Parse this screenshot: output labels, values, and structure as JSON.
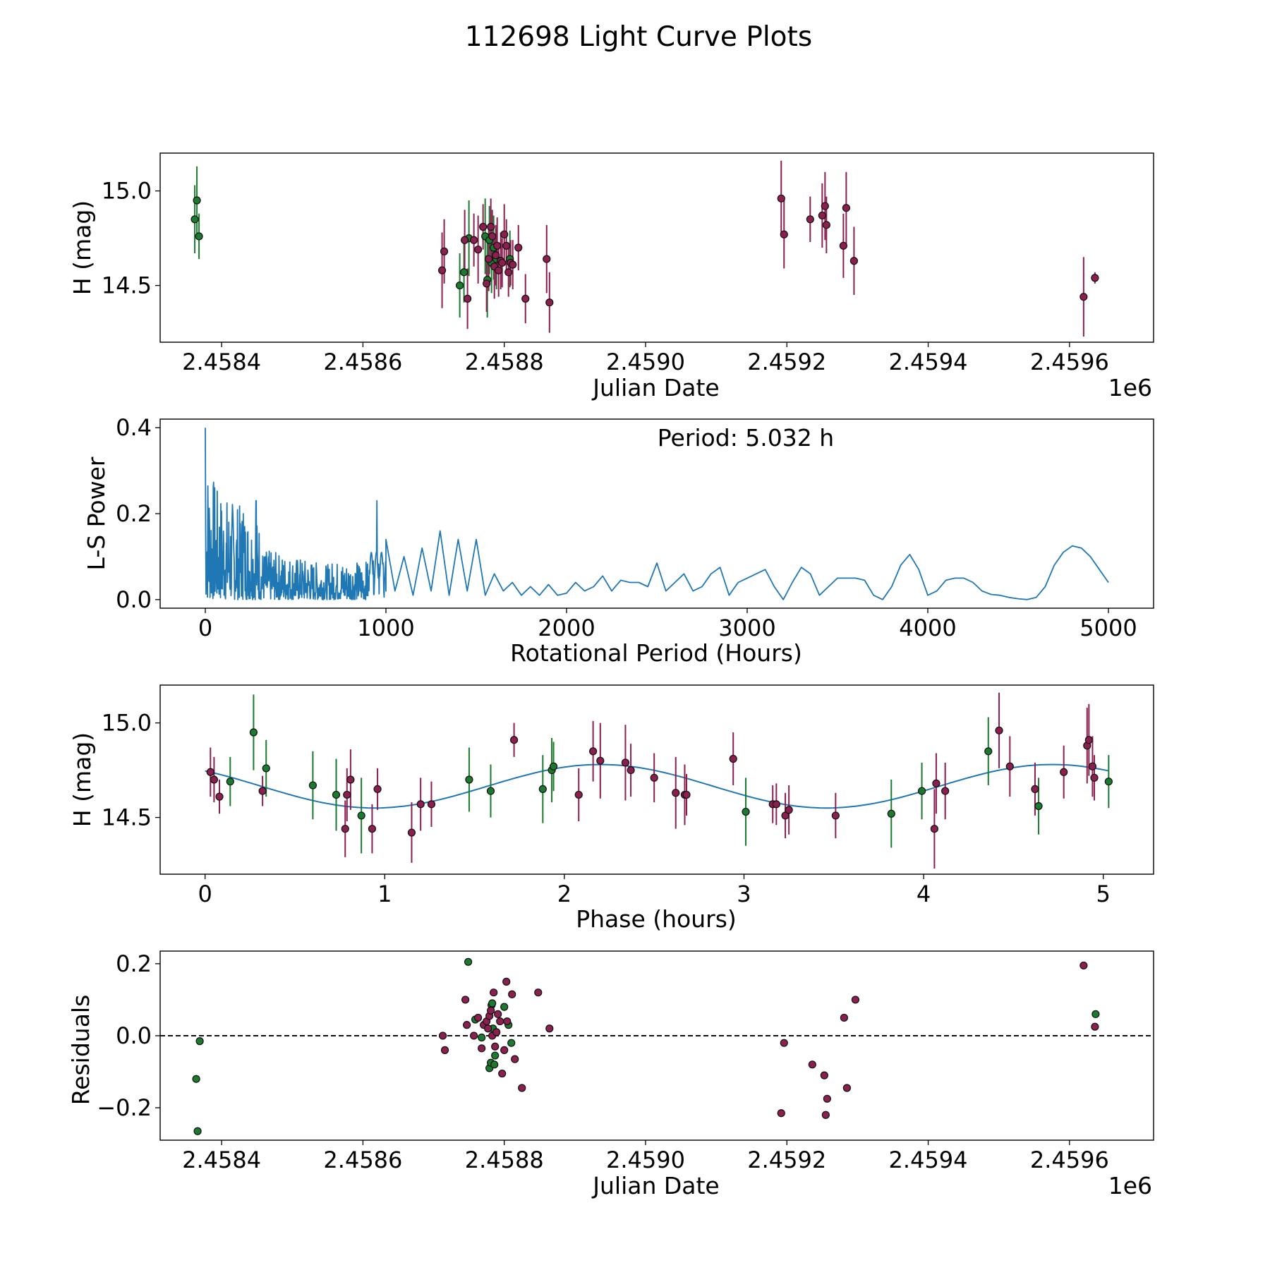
{
  "figure": {
    "title": "112698 Light Curve Plots"
  },
  "chart_data": [
    {
      "id": "lightcurve",
      "type": "scatter",
      "xlabel": "Julian Date",
      "ylabel": "H (mag)",
      "x_offset_label": "1e6",
      "x_tick_labels": [
        "2.4584",
        "2.4586",
        "2.4588",
        "2.4590",
        "2.4592",
        "2.4594",
        "2.4596"
      ],
      "y_tick_labels": [
        "15.0",
        "14.5"
      ],
      "xlim": [
        2458313,
        2459719
      ],
      "ylim": [
        14.2,
        15.2
      ],
      "grid": false,
      "series": [
        {
          "name": "green",
          "color": "#1a7a2e",
          "x": [
            2458362,
            2458365,
            2458368,
            2458737,
            2458743,
            2458750,
            2458773,
            2458776,
            2458779,
            2458782,
            2458785,
            2458789,
            2458808
          ],
          "y": [
            14.85,
            14.95,
            14.76,
            14.5,
            14.57,
            14.75,
            14.76,
            14.53,
            14.74,
            14.62,
            14.7,
            14.64,
            14.64
          ],
          "err": [
            0.18,
            0.18,
            0.12,
            0.17,
            0.16,
            0.2,
            0.2,
            0.2,
            0.18,
            0.16,
            0.17,
            0.16,
            0.15
          ]
        },
        {
          "name": "purple",
          "color": "#8b1f4f",
          "x": [
            2458712,
            2458715,
            2458744,
            2458748,
            2458757,
            2458763,
            2458770,
            2458775,
            2458778,
            2458781,
            2458783,
            2458786,
            2458788,
            2458790,
            2458792,
            2458795,
            2458797,
            2458800,
            2458803,
            2458806,
            2458809,
            2458812,
            2458820,
            2458830,
            2458860,
            2458864,
            2459192,
            2459196,
            2459233,
            2459250,
            2459254,
            2459256,
            2459280,
            2459284,
            2459295,
            2459620,
            2459636
          ],
          "y": [
            14.58,
            14.68,
            14.74,
            14.43,
            14.74,
            14.69,
            14.81,
            14.51,
            14.64,
            14.81,
            14.76,
            14.6,
            14.66,
            14.71,
            14.58,
            14.63,
            14.62,
            14.77,
            14.71,
            14.57,
            14.62,
            14.61,
            14.7,
            14.43,
            14.64,
            14.41,
            14.96,
            14.77,
            14.85,
            14.87,
            14.92,
            14.82,
            14.71,
            14.91,
            14.63,
            14.44,
            14.54
          ],
          "err": [
            0.2,
            0.17,
            0.16,
            0.16,
            0.14,
            0.18,
            0.12,
            0.15,
            0.17,
            0.15,
            0.14,
            0.17,
            0.16,
            0.15,
            0.14,
            0.15,
            0.13,
            0.16,
            0.14,
            0.13,
            0.12,
            0.13,
            0.12,
            0.13,
            0.18,
            0.16,
            0.2,
            0.18,
            0.12,
            0.17,
            0.18,
            0.15,
            0.17,
            0.19,
            0.18,
            0.21,
            0.03
          ]
        }
      ]
    },
    {
      "id": "periodogram",
      "type": "line",
      "xlabel": "Rotational Period (Hours)",
      "ylabel": "L-S Power",
      "annotation": "Period: 5.032 h",
      "x_tick_labels": [
        "0",
        "1000",
        "2000",
        "3000",
        "4000",
        "5000"
      ],
      "y_tick_labels": [
        "0.0",
        "0.2",
        "0.4"
      ],
      "xlim": [
        -250,
        5250
      ],
      "ylim": [
        -0.02,
        0.42
      ],
      "grid": false,
      "color": "#1f77b4",
      "series": [
        {
          "name": "power",
          "x": [
            1000,
            1050,
            1100,
            1150,
            1200,
            1250,
            1300,
            1350,
            1400,
            1450,
            1500,
            1550,
            1600,
            1650,
            1700,
            1750,
            1800,
            1850,
            1900,
            1950,
            2000,
            2050,
            2100,
            2150,
            2200,
            2250,
            2300,
            2350,
            2400,
            2450,
            2500,
            2550,
            2600,
            2650,
            2700,
            2750,
            2800,
            2850,
            2900,
            2950,
            3000,
            3050,
            3100,
            3150,
            3200,
            3250,
            3300,
            3350,
            3400,
            3450,
            3500,
            3550,
            3600,
            3650,
            3700,
            3750,
            3800,
            3850,
            3900,
            3950,
            4000,
            4050,
            4100,
            4150,
            4200,
            4250,
            4300,
            4350,
            4400,
            4450,
            4500,
            4550,
            4600,
            4650,
            4700,
            4750,
            4800,
            4850,
            4900,
            4950,
            5000
          ],
          "y": [
            0.14,
            0.02,
            0.1,
            0.01,
            0.12,
            0.02,
            0.16,
            0.01,
            0.14,
            0.02,
            0.14,
            0.01,
            0.06,
            0.02,
            0.04,
            0.01,
            0.03,
            0.01,
            0.035,
            0.01,
            0.015,
            0.04,
            0.02,
            0.03,
            0.055,
            0.02,
            0.045,
            0.04,
            0.04,
            0.03,
            0.085,
            0.02,
            0.04,
            0.06,
            0.02,
            0.03,
            0.06,
            0.075,
            0.01,
            0.04,
            0.05,
            0.06,
            0.07,
            0.03,
            0.0,
            0.04,
            0.075,
            0.06,
            0.01,
            0.03,
            0.05,
            0.05,
            0.05,
            0.045,
            0.01,
            0.0,
            0.03,
            0.08,
            0.105,
            0.07,
            0.01,
            0.02,
            0.045,
            0.05,
            0.05,
            0.04,
            0.02,
            0.012,
            0.01,
            0.005,
            0.002,
            0.0,
            0.005,
            0.03,
            0.08,
            0.11,
            0.125,
            0.12,
            0.1,
            0.07,
            0.04
          ]
        }
      ]
    },
    {
      "id": "phased",
      "type": "scatter",
      "xlabel": "Phase (hours)",
      "ylabel": "H (mag)",
      "x_tick_labels": [
        "0",
        "1",
        "2",
        "3",
        "4",
        "5"
      ],
      "y_tick_labels": [
        "15.0",
        "14.5"
      ],
      "xlim": [
        -0.25,
        5.28
      ],
      "ylim": [
        14.2,
        15.2
      ],
      "grid": false,
      "fit": {
        "period": 5.032,
        "mean": 14.665,
        "amplitude": 0.115,
        "peak_phase": 2.2,
        "color": "#1f77b4"
      },
      "series": [
        {
          "name": "green",
          "color": "#1a7a2e",
          "x": [
            0.14,
            0.27,
            0.34,
            0.6,
            0.73,
            0.87,
            1.47,
            1.59,
            1.88,
            1.93,
            1.94,
            3.01,
            3.82,
            3.99,
            4.36,
            4.64,
            5.03
          ],
          "y": [
            14.69,
            14.95,
            14.76,
            14.67,
            14.62,
            14.51,
            14.7,
            14.64,
            14.65,
            14.75,
            14.77,
            14.53,
            14.52,
            14.64,
            14.85,
            14.56,
            14.69
          ],
          "err": [
            0.13,
            0.2,
            0.15,
            0.18,
            0.19,
            0.2,
            0.17,
            0.14,
            0.18,
            0.17,
            0.13,
            0.18,
            0.18,
            0.15,
            0.18,
            0.15,
            0.14
          ]
        },
        {
          "name": "purple",
          "color": "#8b1f4f",
          "x": [
            0.03,
            0.05,
            0.08,
            0.32,
            0.78,
            0.79,
            0.81,
            0.93,
            0.96,
            1.15,
            1.2,
            1.26,
            1.72,
            2.08,
            2.16,
            2.2,
            2.34,
            2.37,
            2.5,
            2.62,
            2.67,
            2.68,
            2.94,
            3.16,
            3.18,
            3.23,
            3.25,
            3.51,
            4.06,
            4.07,
            4.12,
            4.42,
            4.48,
            4.62,
            4.78,
            4.91,
            4.92,
            4.94,
            4.95
          ],
          "y": [
            14.74,
            14.7,
            14.61,
            14.64,
            14.44,
            14.62,
            14.7,
            14.44,
            14.65,
            14.42,
            14.57,
            14.57,
            14.91,
            14.62,
            14.85,
            14.8,
            14.79,
            14.75,
            14.71,
            14.63,
            14.62,
            14.62,
            14.81,
            14.57,
            14.57,
            14.51,
            14.54,
            14.51,
            14.44,
            14.68,
            14.64,
            14.96,
            14.77,
            14.65,
            14.74,
            14.88,
            14.91,
            14.77,
            14.71
          ],
          "err": [
            0.13,
            0.12,
            0.09,
            0.08,
            0.15,
            0.14,
            0.16,
            0.13,
            0.11,
            0.16,
            0.14,
            0.12,
            0.09,
            0.14,
            0.16,
            0.2,
            0.2,
            0.14,
            0.13,
            0.19,
            0.16,
            0.11,
            0.14,
            0.1,
            0.11,
            0.12,
            0.13,
            0.12,
            0.21,
            0.16,
            0.15,
            0.2,
            0.16,
            0.14,
            0.14,
            0.2,
            0.19,
            0.16,
            0.12
          ]
        }
      ]
    },
    {
      "id": "residuals",
      "type": "scatter",
      "xlabel": "Julian Date",
      "ylabel": "Residuals",
      "x_offset_label": "1e6",
      "x_tick_labels": [
        "2.4584",
        "2.4586",
        "2.4588",
        "2.4590",
        "2.4592",
        "2.4594",
        "2.4596"
      ],
      "y_tick_labels": [
        "0.2",
        "0.0",
        "−0.2"
      ],
      "xlim": [
        2458313,
        2459719
      ],
      "ylim": [
        -0.29,
        0.235
      ],
      "zero_line": true,
      "grid": false,
      "series": [
        {
          "name": "green",
          "color": "#1a7a2e",
          "x": [
            2458364,
            2458366,
            2458369,
            2458759,
            2458749,
            2458768,
            2458779,
            2458781,
            2458782,
            2458783,
            2458784,
            2458786,
            2458787,
            2458800,
            2458806,
            2458810,
            2459637
          ],
          "y": [
            -0.12,
            -0.265,
            -0.015,
            0.045,
            0.205,
            -0.005,
            -0.09,
            -0.075,
            0.085,
            0.09,
            0.02,
            -0.08,
            -0.055,
            0.08,
            0.03,
            -0.02,
            0.06
          ],
          "err": []
        },
        {
          "name": "purple",
          "color": "#8b1f4f",
          "x": [
            2458713,
            2458716,
            2458745,
            2458747,
            2458757,
            2458763,
            2458768,
            2458771,
            2458775,
            2458777,
            2458779,
            2458781,
            2458783,
            2458785,
            2458787,
            2458789,
            2458791,
            2458794,
            2458797,
            2458800,
            2458803,
            2458804,
            2458811,
            2458815,
            2458825,
            2458848,
            2458864,
            2459192,
            2459196,
            2459236,
            2459253,
            2459255,
            2459257,
            2459281,
            2459285,
            2459297,
            2459620,
            2459636
          ],
          "y": [
            0.0,
            -0.04,
            0.1,
            0.03,
            0.0,
            0.05,
            -0.035,
            0.03,
            0.04,
            0.02,
            0.055,
            0.07,
            0.0,
            0.12,
            -0.03,
            0.01,
            0.06,
            0.04,
            -0.105,
            -0.04,
            0.15,
            0.04,
            0.115,
            -0.065,
            -0.145,
            0.12,
            0.02,
            -0.215,
            -0.02,
            -0.08,
            -0.11,
            -0.22,
            -0.175,
            0.05,
            -0.145,
            0.1,
            0.195,
            0.025
          ],
          "err": []
        }
      ]
    }
  ]
}
